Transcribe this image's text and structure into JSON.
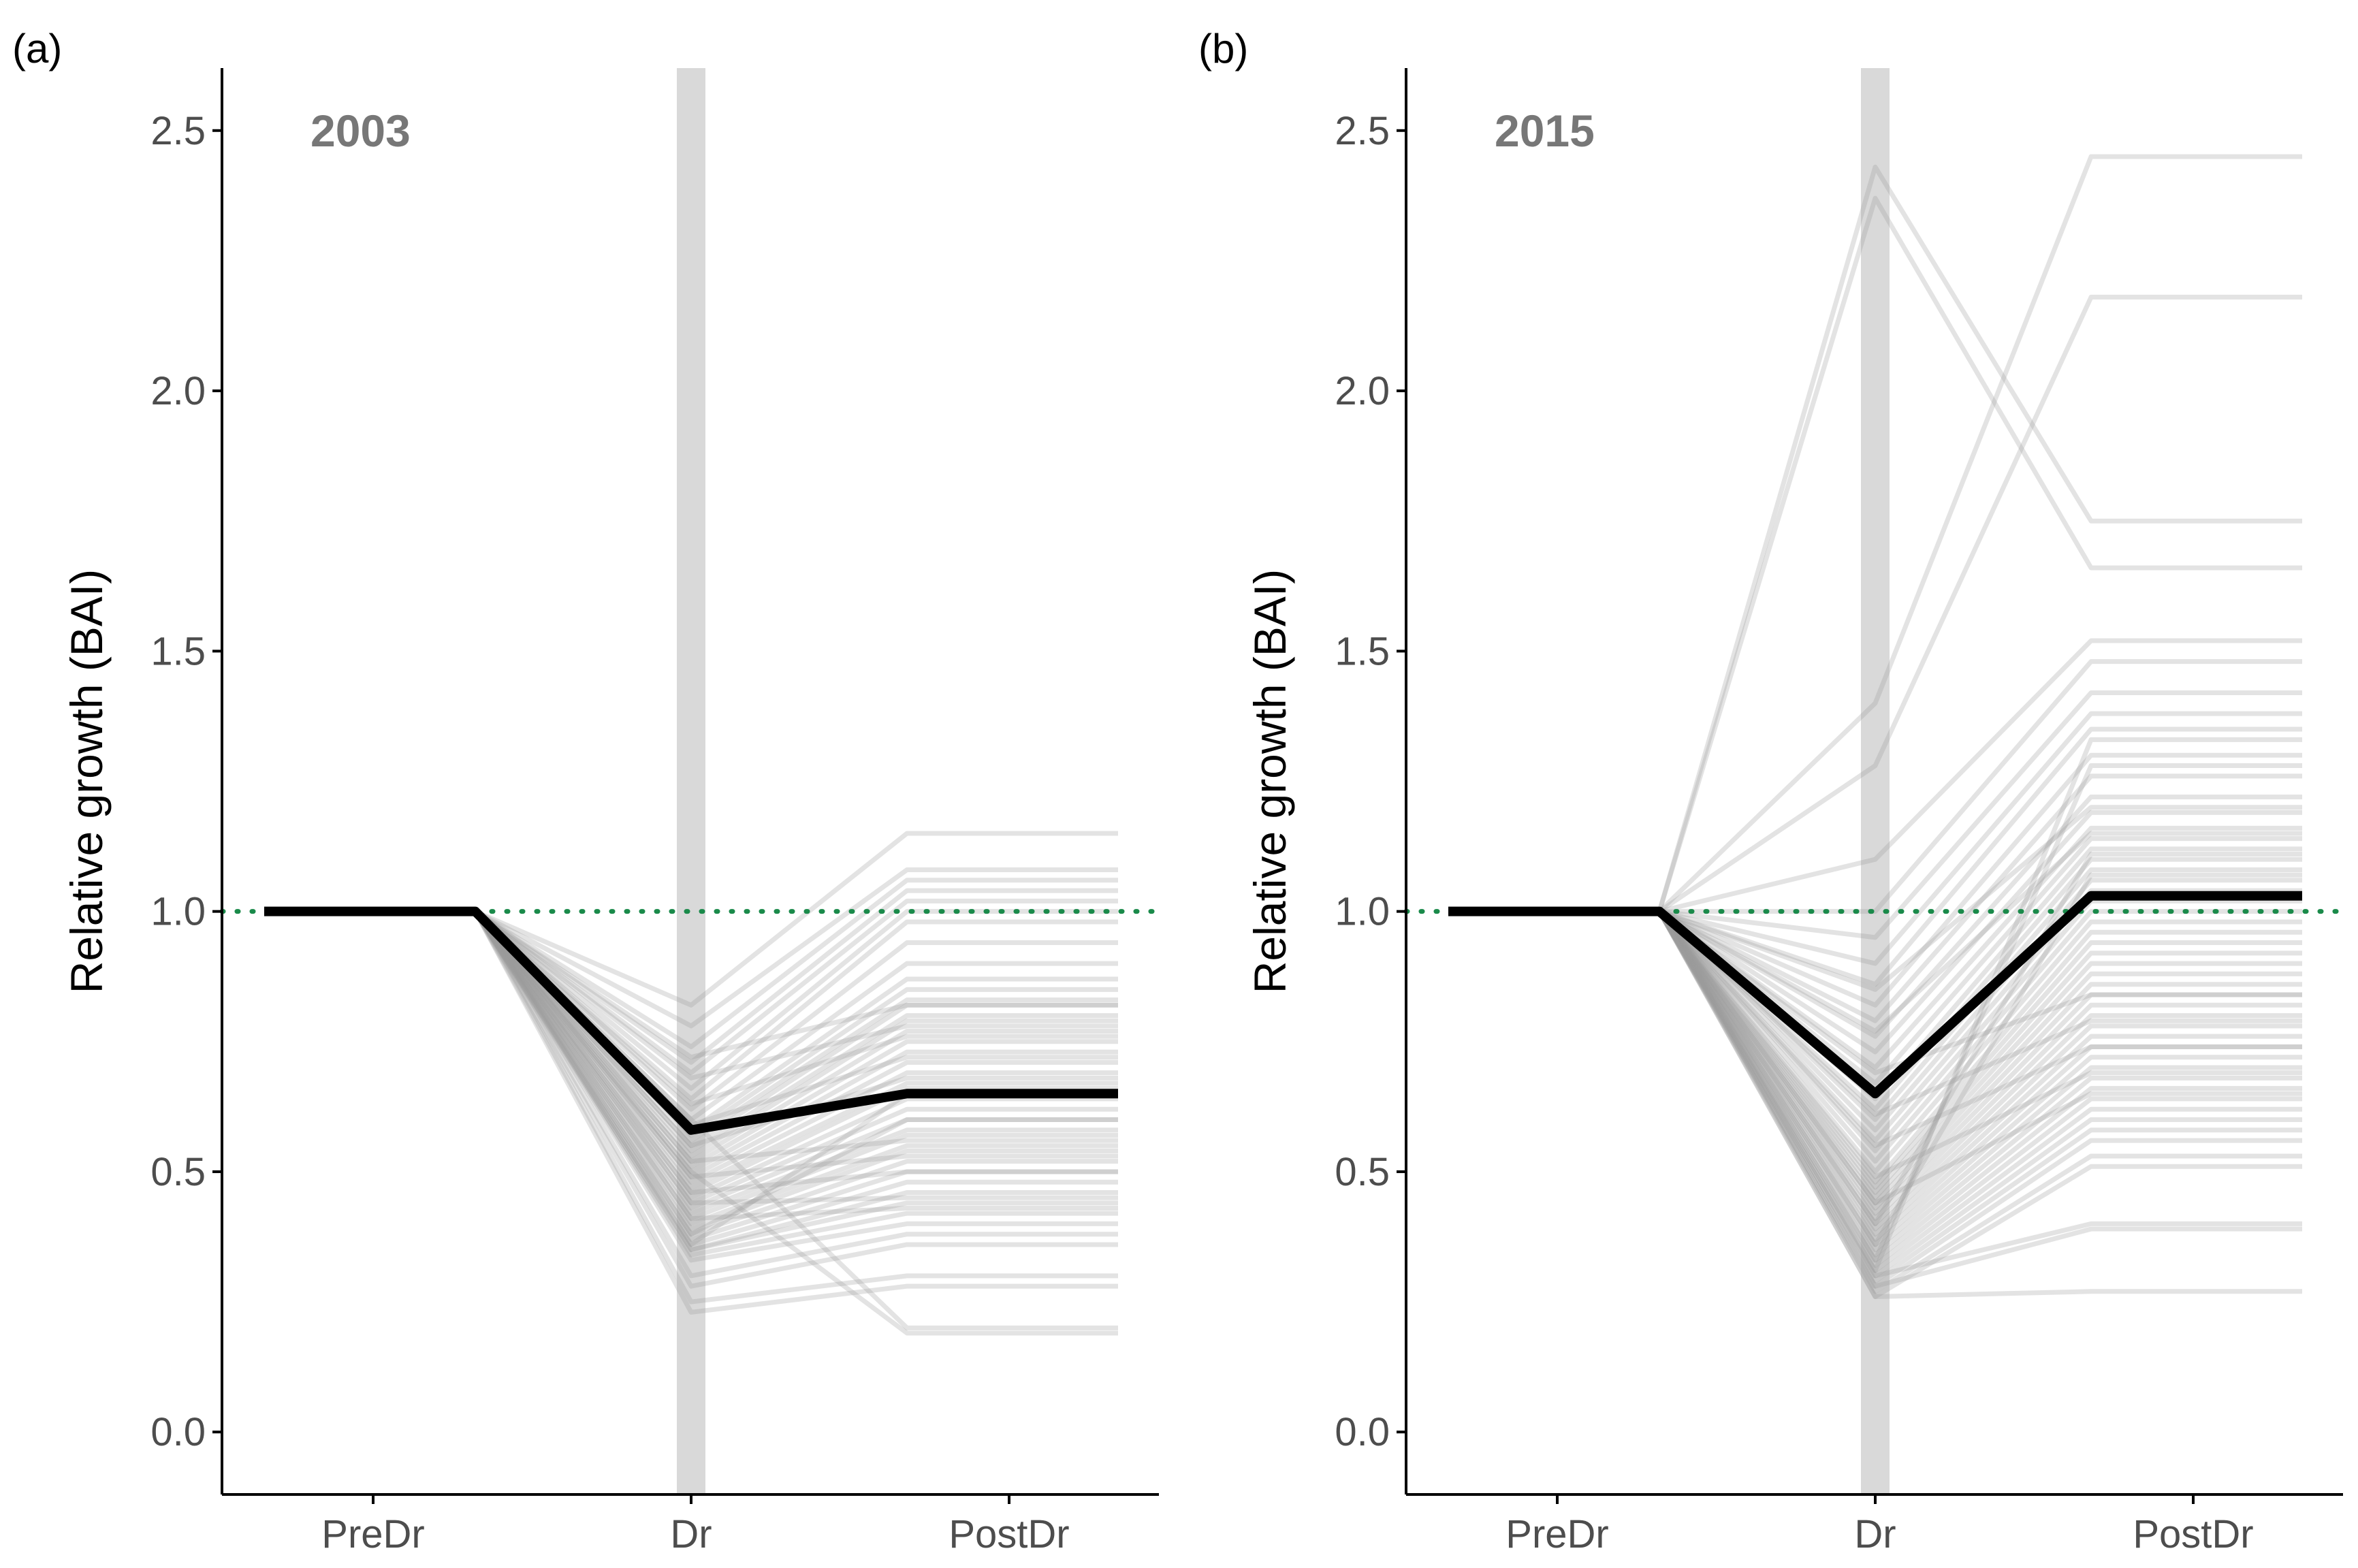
{
  "colors": {
    "tree_line": "#9a9a9a",
    "mean_line": "#000000",
    "reference_line": "#1a8a4a",
    "drought_band": "#d9d9d9",
    "axis": "#000000"
  },
  "chart_data": [
    {
      "type": "line",
      "panel_label": "(a)",
      "title": "2003",
      "xlabel": "",
      "ylabel": "Relative growth (BAI)",
      "categories": [
        "PreDr",
        "Dr",
        "PostDr"
      ],
      "ylim": [
        -0.12,
        2.62
      ],
      "yticks": [
        0.0,
        0.5,
        1.0,
        1.5,
        2.0,
        2.5
      ],
      "ytick_labels": [
        "0.0",
        "0.5",
        "1.0",
        "1.5",
        "2.0",
        "2.5"
      ],
      "reference_value": 1.0,
      "mean_series": {
        "name": "mean",
        "values": [
          1.0,
          0.58,
          0.65
        ]
      },
      "tree_series": [
        [
          1.0,
          0.82,
          1.15
        ],
        [
          1.0,
          0.78,
          1.08
        ],
        [
          1.0,
          0.74,
          1.06
        ],
        [
          1.0,
          0.71,
          1.04
        ],
        [
          1.0,
          0.69,
          1.02
        ],
        [
          1.0,
          0.66,
          1.0
        ],
        [
          1.0,
          0.64,
          0.98
        ],
        [
          1.0,
          0.62,
          0.94
        ],
        [
          1.0,
          0.6,
          0.9
        ],
        [
          1.0,
          0.58,
          0.87
        ],
        [
          1.0,
          0.57,
          0.85
        ],
        [
          1.0,
          0.56,
          0.83
        ],
        [
          1.0,
          0.55,
          0.82
        ],
        [
          1.0,
          0.54,
          0.8
        ],
        [
          1.0,
          0.53,
          0.79
        ],
        [
          1.0,
          0.52,
          0.77
        ],
        [
          1.0,
          0.51,
          0.75
        ],
        [
          1.0,
          0.5,
          0.73
        ],
        [
          1.0,
          0.49,
          0.71
        ],
        [
          1.0,
          0.48,
          0.69
        ],
        [
          1.0,
          0.47,
          0.67
        ],
        [
          1.0,
          0.46,
          0.66
        ],
        [
          1.0,
          0.45,
          0.64
        ],
        [
          1.0,
          0.44,
          0.62
        ],
        [
          1.0,
          0.43,
          0.6
        ],
        [
          1.0,
          0.42,
          0.58
        ],
        [
          1.0,
          0.41,
          0.57
        ],
        [
          1.0,
          0.4,
          0.55
        ],
        [
          1.0,
          0.39,
          0.54
        ],
        [
          1.0,
          0.38,
          0.52
        ],
        [
          1.0,
          0.37,
          0.5
        ],
        [
          1.0,
          0.36,
          0.48
        ],
        [
          1.0,
          0.35,
          0.46
        ],
        [
          1.0,
          0.35,
          0.44
        ],
        [
          1.0,
          0.34,
          0.42
        ],
        [
          1.0,
          0.33,
          0.4
        ],
        [
          1.0,
          0.3,
          0.38
        ],
        [
          1.0,
          0.28,
          0.36
        ],
        [
          1.0,
          0.25,
          0.3
        ],
        [
          1.0,
          0.23,
          0.28
        ],
        [
          1.0,
          0.6,
          0.2
        ],
        [
          1.0,
          0.5,
          0.19
        ],
        [
          1.0,
          0.72,
          0.82
        ],
        [
          1.0,
          0.68,
          0.78
        ],
        [
          1.0,
          0.63,
          0.76
        ],
        [
          1.0,
          0.59,
          0.72
        ],
        [
          1.0,
          0.55,
          0.68
        ],
        [
          1.0,
          0.52,
          0.56
        ],
        [
          1.0,
          0.49,
          0.53
        ],
        [
          1.0,
          0.46,
          0.5
        ],
        [
          1.0,
          0.44,
          0.45
        ],
        [
          1.0,
          0.41,
          0.43
        ],
        [
          1.0,
          0.38,
          0.6
        ],
        [
          1.0,
          0.36,
          0.65
        ]
      ]
    },
    {
      "type": "line",
      "panel_label": "(b)",
      "title": "2015",
      "xlabel": "",
      "ylabel": "Relative growth (BAI)",
      "categories": [
        "PreDr",
        "Dr",
        "PostDr"
      ],
      "ylim": [
        -0.12,
        2.62
      ],
      "yticks": [
        0.0,
        0.5,
        1.0,
        1.5,
        2.0,
        2.5
      ],
      "ytick_labels": [
        "0.0",
        "0.5",
        "1.0",
        "1.5",
        "2.0",
        "2.5"
      ],
      "reference_value": 1.0,
      "mean_series": {
        "name": "mean",
        "values": [
          1.0,
          0.65,
          1.03
        ]
      },
      "tree_series": [
        [
          1.0,
          2.43,
          1.75
        ],
        [
          1.0,
          2.37,
          1.66
        ],
        [
          1.0,
          1.4,
          2.45
        ],
        [
          1.0,
          1.28,
          2.18
        ],
        [
          1.0,
          1.1,
          1.52
        ],
        [
          1.0,
          1.0,
          1.48
        ],
        [
          1.0,
          0.95,
          1.42
        ],
        [
          1.0,
          0.9,
          1.38
        ],
        [
          1.0,
          0.86,
          1.35
        ],
        [
          1.0,
          0.82,
          1.3
        ],
        [
          1.0,
          0.79,
          1.26
        ],
        [
          1.0,
          0.76,
          1.22
        ],
        [
          1.0,
          0.73,
          1.19
        ],
        [
          1.0,
          0.7,
          1.16
        ],
        [
          1.0,
          0.67,
          1.14
        ],
        [
          1.0,
          0.64,
          1.12
        ],
        [
          1.0,
          0.62,
          1.1
        ],
        [
          1.0,
          0.6,
          1.08
        ],
        [
          1.0,
          0.58,
          1.06
        ],
        [
          1.0,
          0.56,
          1.04
        ],
        [
          1.0,
          0.54,
          1.02
        ],
        [
          1.0,
          0.52,
          1.0
        ],
        [
          1.0,
          0.5,
          0.98
        ],
        [
          1.0,
          0.48,
          0.96
        ],
        [
          1.0,
          0.47,
          0.94
        ],
        [
          1.0,
          0.46,
          0.92
        ],
        [
          1.0,
          0.45,
          0.9
        ],
        [
          1.0,
          0.44,
          0.88
        ],
        [
          1.0,
          0.43,
          0.86
        ],
        [
          1.0,
          0.42,
          0.84
        ],
        [
          1.0,
          0.41,
          0.82
        ],
        [
          1.0,
          0.4,
          0.8
        ],
        [
          1.0,
          0.39,
          0.78
        ],
        [
          1.0,
          0.38,
          0.76
        ],
        [
          1.0,
          0.37,
          0.74
        ],
        [
          1.0,
          0.36,
          0.72
        ],
        [
          1.0,
          0.35,
          0.7
        ],
        [
          1.0,
          0.34,
          0.68
        ],
        [
          1.0,
          0.33,
          0.66
        ],
        [
          1.0,
          0.32,
          0.64
        ],
        [
          1.0,
          0.31,
          0.62
        ],
        [
          1.0,
          0.3,
          0.6
        ],
        [
          1.0,
          0.29,
          0.58
        ],
        [
          1.0,
          0.28,
          0.56
        ],
        [
          1.0,
          0.27,
          0.53
        ],
        [
          1.0,
          0.26,
          0.51
        ],
        [
          1.0,
          0.3,
          0.4
        ],
        [
          1.0,
          0.28,
          0.39
        ],
        [
          1.0,
          0.26,
          0.27
        ],
        [
          1.0,
          0.85,
          1.2
        ],
        [
          1.0,
          0.77,
          1.15
        ],
        [
          1.0,
          0.69,
          0.84
        ],
        [
          1.0,
          0.61,
          0.79
        ],
        [
          1.0,
          0.55,
          0.74
        ],
        [
          1.0,
          0.49,
          0.69
        ],
        [
          1.0,
          0.44,
          0.65
        ],
        [
          1.0,
          0.4,
          1.11
        ],
        [
          1.0,
          0.36,
          1.07
        ],
        [
          1.0,
          0.33,
          1.28
        ],
        [
          1.0,
          0.31,
          1.33
        ]
      ]
    }
  ]
}
